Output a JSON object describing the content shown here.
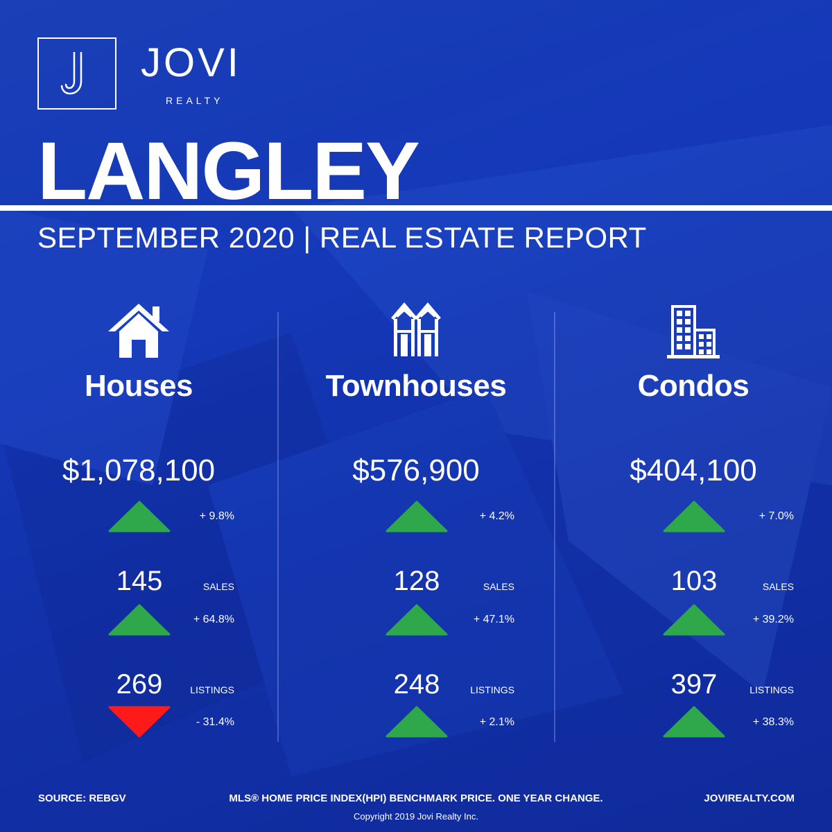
{
  "brand": {
    "name": "JOVI",
    "tagline": "REALTY",
    "logo_letter": "J"
  },
  "header": {
    "city": "LANGLEY",
    "subtitle": "SEPTEMBER 2020 | REAL ESTATE REPORT"
  },
  "colors": {
    "background": "#1438b8",
    "up": "#2ea84a",
    "down": "#ff1a1a"
  },
  "columns": [
    {
      "icon": "house-icon",
      "name": "Houses",
      "price": "$1,078,100",
      "price_change": "+ 9.8%",
      "price_dir": "up",
      "sales": "145",
      "sales_label": "SALES",
      "sales_change": "+ 64.8%",
      "sales_dir": "up",
      "listings": "269",
      "listings_label": "LISTINGS",
      "listings_change": "- 31.4%",
      "listings_dir": "down"
    },
    {
      "icon": "townhouse-icon",
      "name": "Townhouses",
      "price": "$576,900",
      "price_change": "+ 4.2%",
      "price_dir": "up",
      "sales": "128",
      "sales_label": "SALES",
      "sales_change": "+ 47.1%",
      "sales_dir": "up",
      "listings": "248",
      "listings_label": "LISTINGS",
      "listings_change": "+ 2.1%",
      "listings_dir": "up"
    },
    {
      "icon": "condo-building-icon",
      "name": "Condos",
      "price": "$404,100",
      "price_change": "+ 7.0%",
      "price_dir": "up",
      "sales": "103",
      "sales_label": "SALES",
      "sales_change": "+ 39.2%",
      "sales_dir": "up",
      "listings": "397",
      "listings_label": "LISTINGS",
      "listings_change": "+ 38.3%",
      "listings_dir": "up"
    }
  ],
  "footer": {
    "source": "SOURCE:  REBGV",
    "note": "MLS® HOME PRICE INDEX(HPI) BENCHMARK PRICE. ONE YEAR CHANGE.",
    "website": "JOVIREALTY.COM",
    "copyright": "Copyright 2019 Jovi Realty Inc."
  }
}
